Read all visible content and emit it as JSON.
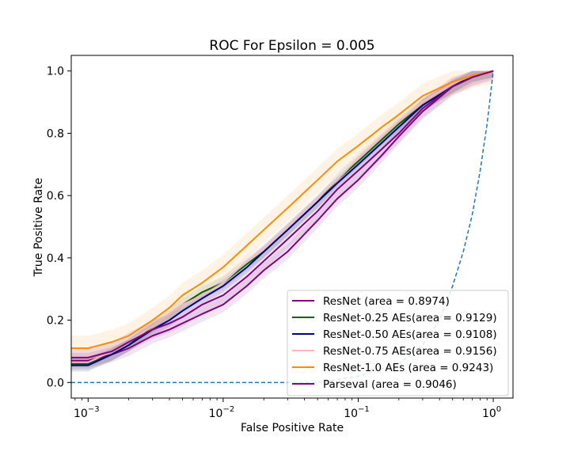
{
  "chart_data": {
    "type": "line",
    "title": "ROC For Epsilon = 0.005",
    "xlabel": "False Positive Rate",
    "ylabel": "True Positive Rate",
    "xscale": "log",
    "xlim": [
      0.00075,
      1.4
    ],
    "ylim": [
      -0.05,
      1.05
    ],
    "x_ticks": [
      {
        "value": 0.001,
        "base": "10",
        "exp": "−3"
      },
      {
        "value": 0.01,
        "base": "10",
        "exp": "−2"
      },
      {
        "value": 0.1,
        "base": "10",
        "exp": "−1"
      },
      {
        "value": 1,
        "base": "10",
        "exp": "0"
      }
    ],
    "y_ticks": [
      {
        "value": 0.0,
        "label": "0.0"
      },
      {
        "value": 0.2,
        "label": "0.2"
      },
      {
        "value": 0.4,
        "label": "0.4"
      },
      {
        "value": 0.6,
        "label": "0.6"
      },
      {
        "value": 0.8,
        "label": "0.8"
      },
      {
        "value": 1.0,
        "label": "1.0"
      }
    ],
    "x": [
      0.00075,
      0.001,
      0.0015,
      0.002,
      0.003,
      0.004,
      0.005,
      0.007,
      0.01,
      0.015,
      0.02,
      0.03,
      0.05,
      0.07,
      0.1,
      0.15,
      0.2,
      0.3,
      0.5,
      0.7,
      1.0
    ],
    "series": [
      {
        "name": "ResNet (area = 0.8974)",
        "color": "#800080",
        "band": 0.025,
        "values": [
          0.07,
          0.07,
          0.09,
          0.11,
          0.15,
          0.17,
          0.19,
          0.22,
          0.25,
          0.31,
          0.36,
          0.42,
          0.52,
          0.59,
          0.65,
          0.73,
          0.79,
          0.87,
          0.95,
          0.98,
          1.0
        ]
      },
      {
        "name": "ResNet-0.25 AEs(area = 0.9129)",
        "color": "#006400",
        "band": 0.02,
        "values": [
          0.06,
          0.06,
          0.09,
          0.12,
          0.18,
          0.22,
          0.25,
          0.29,
          0.32,
          0.38,
          0.42,
          0.49,
          0.58,
          0.65,
          0.71,
          0.78,
          0.83,
          0.89,
          0.95,
          0.985,
          1.0
        ]
      },
      {
        "name": "ResNet-0.50 AEs(area = 0.9108)",
        "color": "#000080",
        "band": 0.02,
        "values": [
          0.055,
          0.055,
          0.09,
          0.12,
          0.17,
          0.2,
          0.23,
          0.27,
          0.31,
          0.37,
          0.42,
          0.49,
          0.58,
          0.64,
          0.7,
          0.77,
          0.82,
          0.89,
          0.95,
          0.985,
          1.0
        ]
      },
      {
        "name": "ResNet-0.75 AEs(area = 0.9156)",
        "color": "#ffb6c1",
        "band": 0.02,
        "values": [
          0.065,
          0.065,
          0.1,
          0.13,
          0.18,
          0.22,
          0.25,
          0.28,
          0.32,
          0.39,
          0.43,
          0.5,
          0.59,
          0.65,
          0.72,
          0.79,
          0.84,
          0.9,
          0.96,
          0.985,
          1.0
        ]
      },
      {
        "name": "ResNet-1.0 AEs (area = 0.9243)",
        "color": "#ff8c00",
        "band": 0.04,
        "values": [
          0.11,
          0.11,
          0.13,
          0.15,
          0.2,
          0.24,
          0.28,
          0.32,
          0.37,
          0.44,
          0.49,
          0.56,
          0.65,
          0.71,
          0.76,
          0.82,
          0.86,
          0.92,
          0.965,
          0.985,
          1.0
        ]
      },
      {
        "name": "Parseval (area = 0.9046)",
        "color": "#800080",
        "band": 0.03,
        "values": [
          0.08,
          0.08,
          0.1,
          0.13,
          0.17,
          0.19,
          0.21,
          0.25,
          0.28,
          0.34,
          0.39,
          0.46,
          0.55,
          0.62,
          0.68,
          0.75,
          0.8,
          0.88,
          0.95,
          0.98,
          1.0
        ]
      }
    ],
    "baseline": {
      "style": "dashed",
      "color": "#1f77b4",
      "x": [
        0.00075,
        0.01,
        0.05,
        0.1,
        0.2,
        0.3,
        0.4,
        0.5,
        0.6,
        0.7,
        0.8,
        0.9,
        1.0
      ],
      "values": [
        0.0,
        0.0,
        0.0,
        0.02,
        0.06,
        0.12,
        0.2,
        0.31,
        0.42,
        0.54,
        0.68,
        0.83,
        1.0
      ]
    },
    "grid": false,
    "legend_position": "lower-right"
  }
}
